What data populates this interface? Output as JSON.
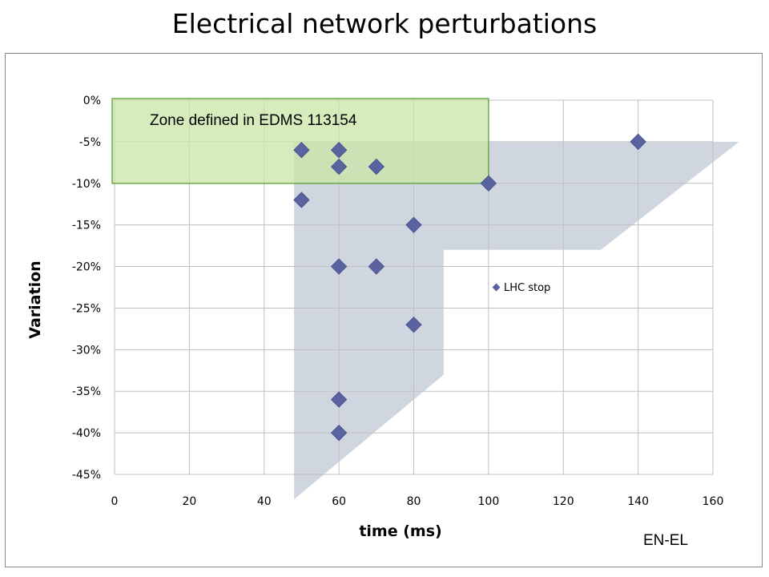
{
  "title": "Electrical network perturbations",
  "footer": "EN-EL",
  "colors": {
    "marker": "#4a548f",
    "marker_fill": "#5a63a0",
    "gray_zone": "#c8cfdb",
    "green_zone": "#c8e6a6",
    "green_border": "#6aa84f",
    "grid": "#bfbfbf"
  },
  "chart_data": {
    "type": "scatter",
    "xlabel": "time (ms)",
    "ylabel": "Variation",
    "xlim": [
      0,
      160
    ],
    "ylim": [
      -45,
      0
    ],
    "xticks": [
      0,
      20,
      40,
      60,
      80,
      100,
      120,
      140,
      160
    ],
    "yticks": [
      0,
      -5,
      -10,
      -15,
      -20,
      -25,
      -30,
      -35,
      -40,
      -45
    ],
    "ytick_labels": [
      "0%",
      "-5%",
      "-10%",
      "-15%",
      "-20%",
      "-25%",
      "-30%",
      "-35%",
      "-40%",
      "-45%"
    ],
    "grid": true,
    "legend_position": "right",
    "series": [
      {
        "name": "LHC stop",
        "marker": "diamond",
        "points": [
          {
            "x": 50,
            "y": -6
          },
          {
            "x": 50,
            "y": -12
          },
          {
            "x": 60,
            "y": -6
          },
          {
            "x": 60,
            "y": -8
          },
          {
            "x": 60,
            "y": -20
          },
          {
            "x": 60,
            "y": -36
          },
          {
            "x": 60,
            "y": -40
          },
          {
            "x": 70,
            "y": -8
          },
          {
            "x": 70,
            "y": -20
          },
          {
            "x": 80,
            "y": -15
          },
          {
            "x": 80,
            "y": -27
          },
          {
            "x": 100,
            "y": -10
          },
          {
            "x": 140,
            "y": -5
          }
        ]
      }
    ],
    "annotations": [
      {
        "text": "Zone defined in EDMS 113154",
        "region": {
          "x": [
            0,
            100
          ],
          "y": [
            -10,
            0
          ]
        }
      }
    ],
    "shaded_region": [
      {
        "x": 48,
        "y": -48
      },
      {
        "x": 48,
        "y": -5
      },
      {
        "x": 167,
        "y": -5
      },
      {
        "x": 130,
        "y": -18
      },
      {
        "x": 88,
        "y": -18
      },
      {
        "x": 88,
        "y": -33
      }
    ]
  }
}
